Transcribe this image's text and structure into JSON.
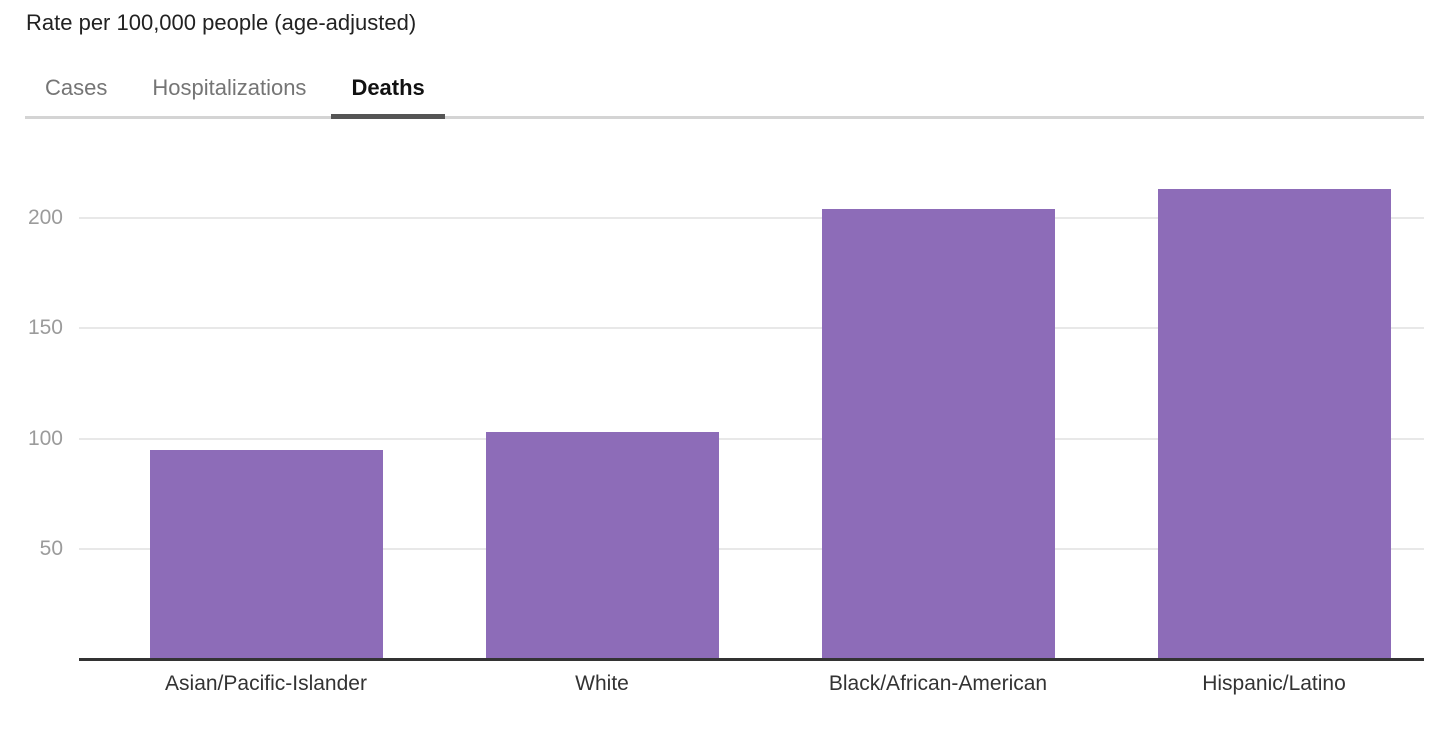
{
  "header": {
    "title": "Rate per 100,000 people (age-adjusted)"
  },
  "tabs": {
    "items": [
      {
        "label": "Cases",
        "active": false
      },
      {
        "label": "Hospitalizations",
        "active": false
      },
      {
        "label": "Deaths",
        "active": true
      }
    ]
  },
  "chart_data": {
    "type": "bar",
    "title": "Rate per 100,000 people (age-adjusted)",
    "categories": [
      "Asian/Pacific-Islander",
      "White",
      "Black/African-American",
      "Hispanic/Latino"
    ],
    "values": [
      95,
      103,
      204,
      213
    ],
    "xlabel": "",
    "ylabel": "Rate per 100,000 people (age-adjusted)",
    "ylim": [
      0,
      230
    ],
    "yticks": [
      50,
      100,
      150,
      200
    ],
    "grid": true,
    "legend": false,
    "bar_color": "#8d6cb8"
  },
  "colors": {
    "bar": "#8d6cb8",
    "gridline": "#e8e8e8",
    "axis_line": "#333333",
    "y_tick_label": "#9b9b9b",
    "x_tick_label": "#333333",
    "tab_inactive": "#757575",
    "tab_active": "#111111",
    "tab_underline": "#555555",
    "tab_divider": "#d4d4d4",
    "title": "#222222"
  }
}
